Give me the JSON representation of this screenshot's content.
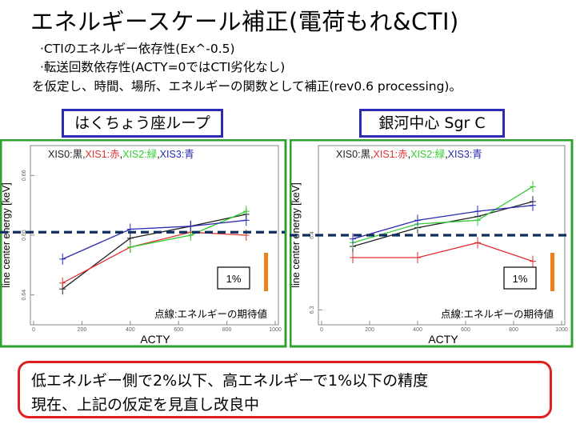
{
  "title": "エネルギースケール補正(電荷もれ&CTI)",
  "bullets": [
    "·CTIのエネルギー依存性(Ex^-0.5)",
    "·転送回数依存性(ACTY=0ではCTI劣化なし)",
    "を仮定し、時間、場所、エネルギーの関数として補正(rev0.6 processing)。"
  ],
  "labels": {
    "left": "はくちょう座ループ",
    "right": "銀河中心 Sgr C"
  },
  "note": {
    "line1": "低エネルギー側で2%以下、高エネルギーで1%以下の精度",
    "line2": "現在、上記の仮定を見直し改良中"
  },
  "colors": {
    "xis0": "#222222",
    "xis1": "#e03030",
    "xis2": "#33cc33",
    "xis3": "#2a2ab0",
    "expected": "#0d2f5e",
    "scalebar": "#ef7f18"
  },
  "chart_data": [
    {
      "type": "line",
      "name": "left",
      "legend": {
        "prefix": "XIS0:黒,",
        "xis1": "XIS1:赤",
        "sep1": ",",
        "xis2": "XIS2:緑",
        "sep2": ",",
        "xis3": "XIS3:青"
      },
      "xlabel": "ACTY",
      "ylabel": "line center energy [keV]",
      "xlim": [
        0,
        1000
      ],
      "ylim": [
        0.635,
        0.665
      ],
      "xticks": [
        "0",
        "200",
        "400",
        "600",
        "800",
        "1000"
      ],
      "yticks": [
        "0.64",
        "0.65",
        "0.66"
      ],
      "expected_value": 0.6505,
      "expected_label": "点線:エネルギーの期待値",
      "scale_label": "1%",
      "series": [
        {
          "name": "XIS0",
          "x": [
            120,
            400,
            650,
            880
          ],
          "y": [
            0.641,
            0.6495,
            0.6515,
            0.6535
          ]
        },
        {
          "name": "XIS1",
          "x": [
            120,
            400,
            650,
            880
          ],
          "y": [
            0.642,
            0.648,
            0.6505,
            0.65
          ]
        },
        {
          "name": "XIS2",
          "x": [
            400,
            650,
            880
          ],
          "y": [
            0.648,
            0.65,
            0.654
          ]
        },
        {
          "name": "XIS3",
          "x": [
            120,
            400,
            650,
            880
          ],
          "y": [
            0.646,
            0.651,
            0.6515,
            0.6525
          ]
        }
      ]
    },
    {
      "type": "line",
      "name": "right",
      "legend": {
        "prefix": "XIS0:黒,",
        "xis1": "XIS1:赤",
        "sep1": ",",
        "xis2": "XIS2:緑",
        "sep2": ",",
        "xis3": "XIS3:青"
      },
      "xlabel": "ACTY",
      "ylabel": "line center energy [keV]",
      "xlim": [
        0,
        1000
      ],
      "ylim": [
        6.28,
        6.52
      ],
      "xticks": [
        "0",
        "200",
        "400",
        "600",
        "800",
        "1000"
      ],
      "yticks": [
        "6.3",
        "6.4"
      ],
      "expected_value": 6.4,
      "expected_label": "点線:エネルギーの期待値",
      "scale_label": "1%",
      "series": [
        {
          "name": "XIS0",
          "x": [
            130,
            400,
            650,
            880
          ],
          "y": [
            6.385,
            6.41,
            6.425,
            6.445
          ]
        },
        {
          "name": "XIS1",
          "x": [
            130,
            400,
            650,
            880
          ],
          "y": [
            6.37,
            6.37,
            6.39,
            6.365
          ]
        },
        {
          "name": "XIS2",
          "x": [
            130,
            400,
            650,
            880
          ],
          "y": [
            6.39,
            6.415,
            6.42,
            6.465
          ]
        },
        {
          "name": "XIS3",
          "x": [
            130,
            400,
            650,
            880
          ],
          "y": [
            6.395,
            6.42,
            6.432,
            6.44
          ]
        }
      ]
    }
  ]
}
